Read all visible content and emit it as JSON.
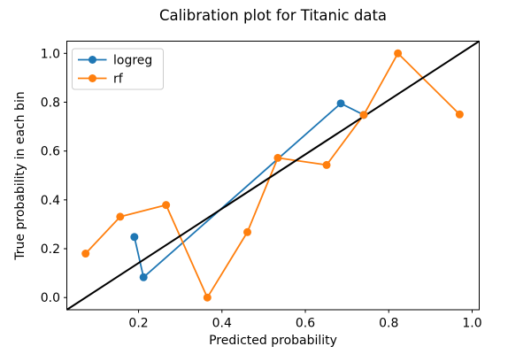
{
  "chart_data": {
    "type": "line",
    "title": "Calibration plot for Titanic data",
    "xlabel": "Predicted probability",
    "ylabel": "True probability in each bin",
    "xlim": [
      0.028,
      1.017
    ],
    "ylim": [
      -0.05,
      1.05
    ],
    "grid": false,
    "legend_position": "upper left",
    "xticks": {
      "values": [
        0.2,
        0.4,
        0.6,
        0.8,
        1.0
      ],
      "labels": [
        "0.2",
        "0.4",
        "0.6",
        "0.8",
        "1.0"
      ]
    },
    "yticks": {
      "values": [
        0.0,
        0.2,
        0.4,
        0.6,
        0.8,
        1.0
      ],
      "labels": [
        "0.0",
        "0.2",
        "0.4",
        "0.6",
        "0.8",
        "1.0"
      ]
    },
    "series": [
      {
        "name": "logreg",
        "color": "#1f77b4",
        "marker": "circle",
        "x": [
          0.19,
          0.212,
          0.685,
          0.74
        ],
        "y": [
          0.248,
          0.083,
          0.795,
          0.748
        ]
      },
      {
        "name": "rf",
        "color": "#ff7f0e",
        "marker": "circle",
        "x": [
          0.073,
          0.156,
          0.266,
          0.365,
          0.461,
          0.534,
          0.651,
          0.74,
          0.822,
          0.97
        ],
        "y": [
          0.18,
          0.331,
          0.379,
          0.0,
          0.268,
          0.572,
          0.543,
          0.748,
          1.0,
          0.75
        ]
      }
    ],
    "reference_line": {
      "name": "perfect-calibration-diagonal",
      "color": "#000000",
      "from": [
        0,
        0
      ],
      "to": [
        1,
        1
      ]
    }
  }
}
